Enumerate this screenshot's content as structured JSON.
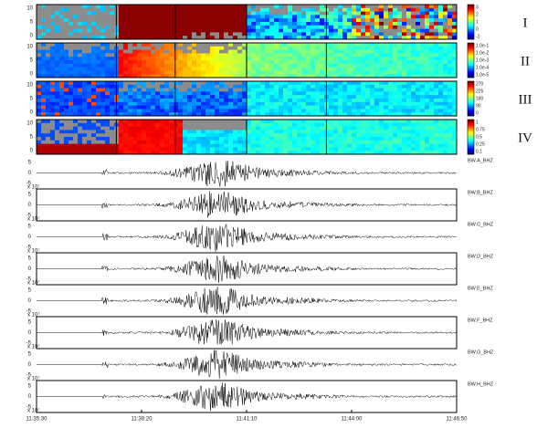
{
  "panels": [
    {
      "label": "I",
      "yticks": [
        "10",
        "5",
        "0"
      ],
      "colorbar_ticks": [
        "3",
        "2",
        "1",
        "0",
        "-1"
      ]
    },
    {
      "label": "II",
      "yticks": [
        "10",
        "5",
        "0"
      ],
      "colorbar_ticks": [
        "1.0e-1",
        "1.0e-2",
        "1.0e-3",
        "1.0e-4",
        "1.0e-5"
      ]
    },
    {
      "label": "III",
      "yticks": [
        "10",
        "5",
        "0"
      ],
      "colorbar_ticks": [
        "270",
        "225",
        "180",
        "90",
        "0"
      ]
    },
    {
      "label": "IV",
      "yticks": [
        "10",
        "5",
        "0"
      ],
      "colorbar_ticks": [
        "1",
        "0.75",
        "0.5",
        "0.25",
        "0.1"
      ]
    }
  ],
  "traces": [
    {
      "station": "BW.A_BHZ",
      "yticks": [
        "5",
        "0",
        "-5"
      ],
      "scale": "x 10⁷"
    },
    {
      "station": "BW.B_BHZ",
      "yticks": [
        "5",
        "0",
        "-5"
      ],
      "scale": "x 10⁷"
    },
    {
      "station": "BW.C_BHZ",
      "yticks": [
        "5",
        "0",
        "-5"
      ],
      "scale": "x 10⁷"
    },
    {
      "station": "BW.D_BHZ",
      "yticks": [
        "5",
        "0",
        "-5"
      ],
      "scale": "x 10⁷"
    },
    {
      "station": "BW.E_BHZ",
      "yticks": [
        "5",
        "0",
        "-5"
      ],
      "scale": "x 10⁷"
    },
    {
      "station": "BW.F_BHZ",
      "yticks": [
        "5",
        "0",
        "-5"
      ],
      "scale": "x 10⁷"
    },
    {
      "station": "BW.G_BHZ",
      "yticks": [
        "5",
        "0",
        "-5"
      ],
      "scale": "x 10⁷"
    },
    {
      "station": "BW.H_BHZ",
      "yticks": [
        "5",
        "0",
        "-5"
      ],
      "scale": "x 10⁷"
    }
  ],
  "x_axis": {
    "ticks": [
      "11:35:30",
      "11:38:20",
      "11:41:10",
      "11:44:00",
      "11:46:50"
    ]
  }
}
